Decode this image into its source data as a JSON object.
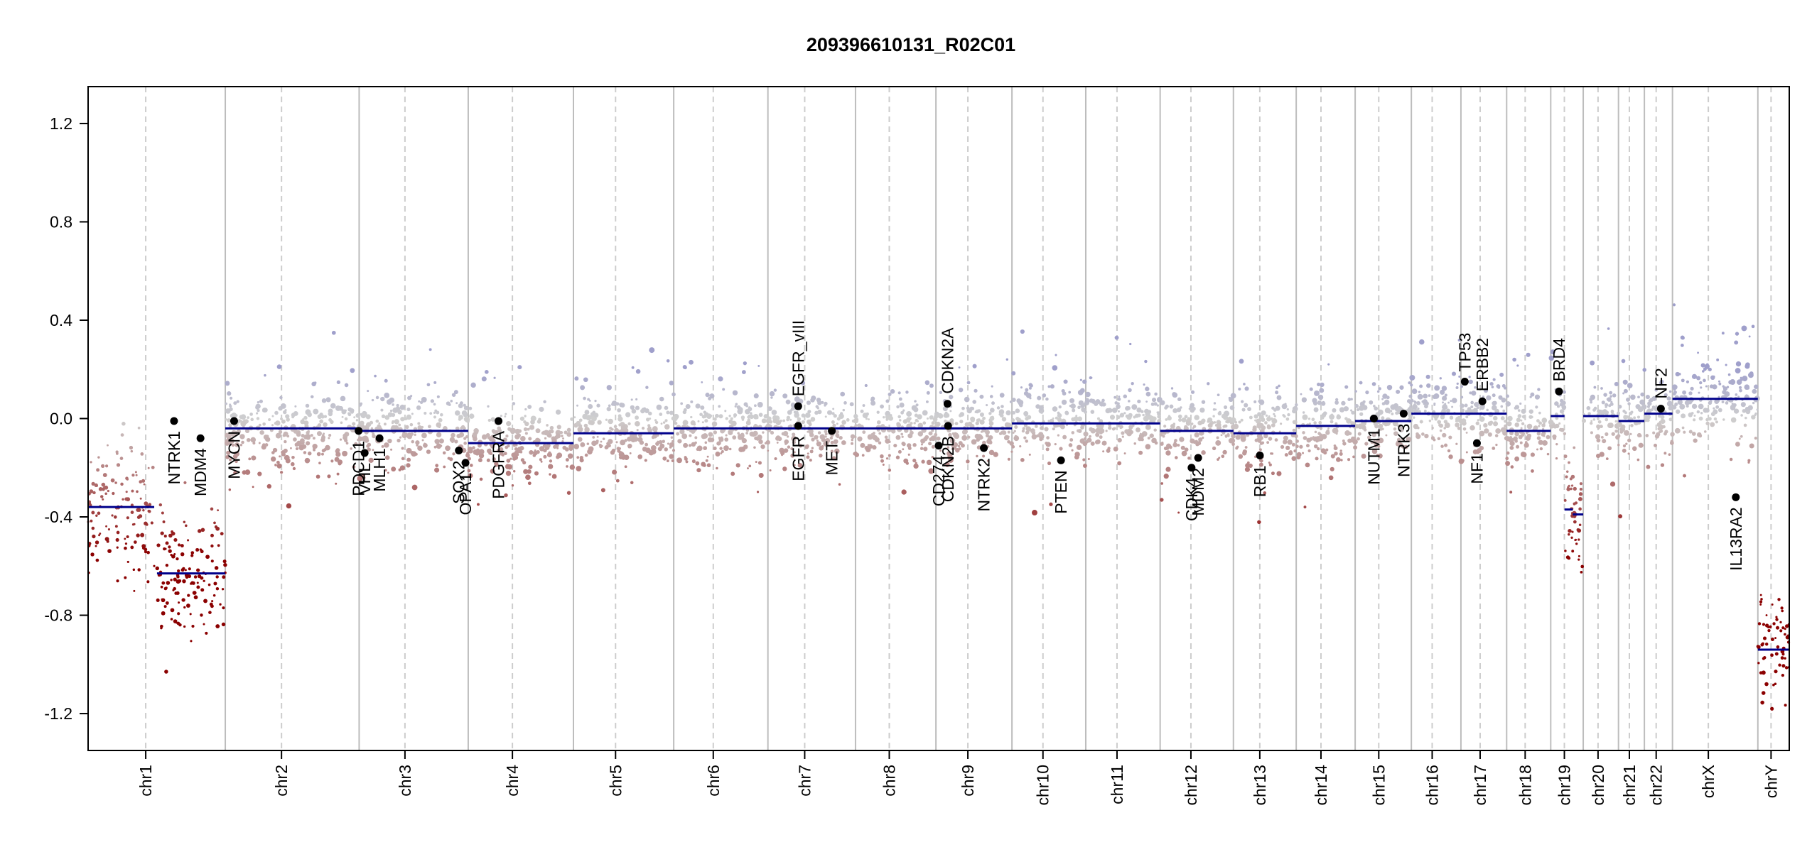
{
  "chart_data": {
    "type": "scatter",
    "title": "209396610131_R02C01",
    "xlabel": "",
    "ylabel": "",
    "ylim": [
      -1.35,
      1.35
    ],
    "yticks": [
      1.2,
      0.8,
      0.4,
      0.0,
      -0.4,
      -0.8,
      -1.2
    ],
    "ytick_labels": [
      "1.2",
      "0.8",
      "0.4",
      "0.0",
      "-0.4",
      "-0.8",
      "-1.2"
    ],
    "grid": false,
    "colors": {
      "gain": "#9f9fcb",
      "neutral": "#cfcfcf",
      "loss": "#8b0000",
      "segment": "#00008b",
      "gene_point": "#000000",
      "chromosome_boundary": "#bdbdbd",
      "centromere": "#cdcdcd",
      "axis": "#000000"
    },
    "chromosomes": [
      {
        "name": "chr1",
        "label": "chr1",
        "size": 249
      },
      {
        "name": "chr2",
        "label": "chr2",
        "size": 243
      },
      {
        "name": "chr3",
        "label": "chr3",
        "size": 198
      },
      {
        "name": "chr4",
        "label": "chr4",
        "size": 191
      },
      {
        "name": "chr5",
        "label": "chr5",
        "size": 182
      },
      {
        "name": "chr6",
        "label": "chr6",
        "size": 171
      },
      {
        "name": "chr7",
        "label": "chr7",
        "size": 159
      },
      {
        "name": "chr8",
        "label": "chr8",
        "size": 146
      },
      {
        "name": "chr9",
        "label": "chr9",
        "size": 138
      },
      {
        "name": "chr10",
        "label": "chr10",
        "size": 134
      },
      {
        "name": "chr11",
        "label": "chr11",
        "size": 135
      },
      {
        "name": "chr12",
        "label": "chr12",
        "size": 133
      },
      {
        "name": "chr13",
        "label": "chr13",
        "size": 114
      },
      {
        "name": "chr14",
        "label": "chr14",
        "size": 107
      },
      {
        "name": "chr15",
        "label": "chr15",
        "size": 102
      },
      {
        "name": "chr16",
        "label": "chr16",
        "size": 90
      },
      {
        "name": "chr17",
        "label": "chr17",
        "size": 83
      },
      {
        "name": "chr18",
        "label": "chr18",
        "size": 80
      },
      {
        "name": "chr19",
        "label": "chr19",
        "size": 59
      },
      {
        "name": "chr20",
        "label": "chr20",
        "size": 64
      },
      {
        "name": "chr21",
        "label": "chr21",
        "size": 47
      },
      {
        "name": "chr22",
        "label": "chr22",
        "size": 51
      },
      {
        "name": "chrX",
        "label": "chrX",
        "size": 155
      },
      {
        "name": "chrY",
        "label": "chrY",
        "size": 57
      }
    ],
    "segments": [
      {
        "chr": "chr1",
        "start": 0,
        "end": 120,
        "value": -0.36
      },
      {
        "chr": "chr1",
        "start": 125,
        "end": 249,
        "value": -0.63
      },
      {
        "chr": "chr2",
        "start": 0,
        "end": 243,
        "value": -0.04
      },
      {
        "chr": "chr3",
        "start": 0,
        "end": 198,
        "value": -0.05
      },
      {
        "chr": "chr4",
        "start": 0,
        "end": 191,
        "value": -0.1
      },
      {
        "chr": "chr5",
        "start": 0,
        "end": 182,
        "value": -0.06
      },
      {
        "chr": "chr6",
        "start": 0,
        "end": 171,
        "value": -0.04
      },
      {
        "chr": "chr7",
        "start": 0,
        "end": 159,
        "value": -0.04
      },
      {
        "chr": "chr8",
        "start": 0,
        "end": 146,
        "value": -0.04
      },
      {
        "chr": "chr9",
        "start": 0,
        "end": 138,
        "value": -0.04
      },
      {
        "chr": "chr10",
        "start": 0,
        "end": 134,
        "value": -0.02
      },
      {
        "chr": "chr11",
        "start": 0,
        "end": 135,
        "value": -0.02
      },
      {
        "chr": "chr12",
        "start": 0,
        "end": 133,
        "value": -0.05
      },
      {
        "chr": "chr13",
        "start": 0,
        "end": 114,
        "value": -0.06
      },
      {
        "chr": "chr14",
        "start": 0,
        "end": 107,
        "value": -0.03
      },
      {
        "chr": "chr15",
        "start": 0,
        "end": 102,
        "value": -0.01
      },
      {
        "chr": "chr16",
        "start": 0,
        "end": 90,
        "value": 0.02
      },
      {
        "chr": "chr17",
        "start": 0,
        "end": 83,
        "value": 0.02
      },
      {
        "chr": "chr18",
        "start": 0,
        "end": 80,
        "value": -0.05
      },
      {
        "chr": "chr19",
        "start": 0,
        "end": 25,
        "value": 0.01
      },
      {
        "chr": "chr19",
        "start": 25,
        "end": 40,
        "value": -0.37
      },
      {
        "chr": "chr19",
        "start": 40,
        "end": 59,
        "value": -0.39
      },
      {
        "chr": "chr20",
        "start": 0,
        "end": 64,
        "value": 0.01
      },
      {
        "chr": "chr21",
        "start": 0,
        "end": 47,
        "value": -0.01
      },
      {
        "chr": "chr22",
        "start": 0,
        "end": 51,
        "value": 0.02
      },
      {
        "chr": "chrX",
        "start": 0,
        "end": 155,
        "value": 0.08
      },
      {
        "chr": "chrY",
        "start": 0,
        "end": 57,
        "value": -0.94
      }
    ],
    "genes": [
      {
        "name": "NTRK1",
        "chr": "chr1",
        "pos": 156,
        "value": -0.01
      },
      {
        "name": "MDM4",
        "chr": "chr1",
        "pos": 204,
        "value": -0.08
      },
      {
        "name": "MYCN",
        "chr": "chr2",
        "pos": 16,
        "value": -0.01
      },
      {
        "name": "PDCD1",
        "chr": "chr2",
        "pos": 242,
        "value": -0.05
      },
      {
        "name": "VHL",
        "chr": "chr3",
        "pos": 10,
        "value": -0.14
      },
      {
        "name": "MLH1",
        "chr": "chr3",
        "pos": 37,
        "value": -0.08
      },
      {
        "name": "SOX2",
        "chr": "chr3",
        "pos": 181,
        "value": -0.13
      },
      {
        "name": "OPA1",
        "chr": "chr3",
        "pos": 193,
        "value": -0.18
      },
      {
        "name": "PDGFRA",
        "chr": "chr4",
        "pos": 55,
        "value": -0.01
      },
      {
        "name": "EGFR_vIII",
        "chr": "chr7",
        "pos": 55,
        "value": 0.05
      },
      {
        "name": "EGFR",
        "chr": "chr7",
        "pos": 55,
        "value": -0.03
      },
      {
        "name": "MET",
        "chr": "chr7",
        "pos": 116,
        "value": -0.05
      },
      {
        "name": "CDKN2A",
        "chr": "chr9",
        "pos": 21,
        "value": 0.06
      },
      {
        "name": "CDKN2B",
        "chr": "chr9",
        "pos": 22,
        "value": -0.03
      },
      {
        "name": "CD274",
        "chr": "chr9",
        "pos": 5,
        "value": -0.11
      },
      {
        "name": "NTRK2",
        "chr": "chr9",
        "pos": 87,
        "value": -0.12
      },
      {
        "name": "PTEN",
        "chr": "chr10",
        "pos": 89,
        "value": -0.17
      },
      {
        "name": "CDK4",
        "chr": "chr12",
        "pos": 57,
        "value": -0.2
      },
      {
        "name": "MDM2",
        "chr": "chr12",
        "pos": 69,
        "value": -0.16
      },
      {
        "name": "RB1",
        "chr": "chr13",
        "pos": 48,
        "value": -0.15
      },
      {
        "name": "NUTM1",
        "chr": "chr15",
        "pos": 34,
        "value": 0.0
      },
      {
        "name": "NTRK3",
        "chr": "chr15",
        "pos": 88,
        "value": 0.02
      },
      {
        "name": "TP53",
        "chr": "chr17",
        "pos": 7,
        "value": 0.15
      },
      {
        "name": "ERBB2",
        "chr": "chr17",
        "pos": 39,
        "value": 0.07
      },
      {
        "name": "NF1",
        "chr": "chr17",
        "pos": 29,
        "value": -0.1
      },
      {
        "name": "BRD4",
        "chr": "chr19",
        "pos": 15,
        "value": 0.11
      },
      {
        "name": "NF2",
        "chr": "chr22",
        "pos": 30,
        "value": 0.04
      },
      {
        "name": "IL13RA2",
        "chr": "chrX",
        "pos": 115,
        "value": -0.32
      }
    ]
  }
}
